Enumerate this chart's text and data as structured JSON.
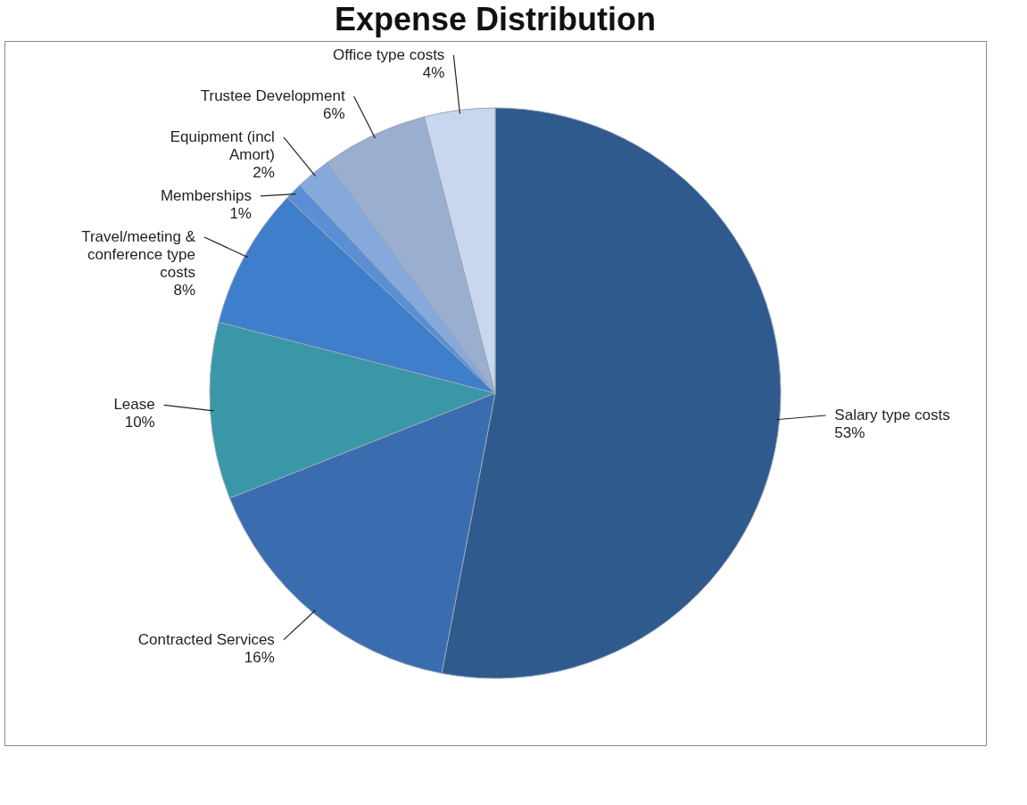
{
  "chart_data": {
    "type": "pie",
    "title": "Expense Distribution",
    "categories": [
      "Salary type costs",
      "Contracted Services",
      "Lease",
      "Travel/meeting & conference type costs",
      "Memberships",
      "Equipment (incl Amort)",
      "Trustee Development",
      "Office type costs"
    ],
    "values": [
      53,
      16,
      10,
      8,
      1,
      2,
      6,
      4
    ],
    "value_labels": [
      "53%",
      "16%",
      "10%",
      "8%",
      "1%",
      "2%",
      "6%",
      "4%"
    ],
    "colors": [
      "#2e5a8e",
      "#3a6db0",
      "#3a97a8",
      "#3f7ecb",
      "#5b8fd5",
      "#86a9dc",
      "#9aaed0",
      "#c8d6ee"
    ],
    "legend": false
  }
}
